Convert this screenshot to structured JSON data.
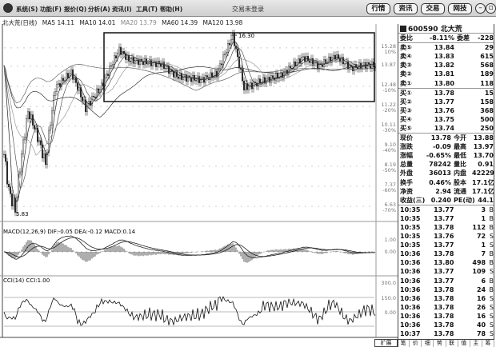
{
  "menu": {
    "items": [
      "系统(S)",
      "功能(F)",
      "报价(Q)",
      "分析(A)",
      "资讯(I)",
      "工具(T)",
      "帮助(H)"
    ],
    "title": "交易未登录",
    "buttons": [
      "行情",
      "资讯",
      "交易",
      "网技"
    ],
    "min": "–",
    "restore": "▫"
  },
  "info": {
    "name": "北大荒(日线)",
    "ma5": "MA5 14.11",
    "ma10": "MA10 14.01",
    "ma20": "MA20 13.79",
    "ma60": "MA60 14.39",
    "ma120": "MA120 13.98"
  },
  "chart_data": [
    {
      "type": "candlestick-line",
      "title": "北大荒(日线)",
      "scale": "log",
      "high_label": "16.30",
      "low_label": "5.83",
      "x": [
        0,
        3,
        7,
        15,
        18,
        26,
        32,
        42,
        51,
        61,
        72,
        78,
        98,
        108,
        123,
        133,
        143,
        146,
        150,
        163,
        173,
        187,
        197,
        207,
        217,
        227,
        232
      ],
      "close": [
        8.72,
        7.2,
        6.52,
        10.9,
        10.3,
        8.29,
        12.37,
        13.45,
        11.13,
        12.48,
        15.14,
        14.33,
        14.03,
        13.17,
        12.9,
        13.34,
        16.28,
        14.5,
        12.37,
        12.9,
        13.2,
        14.52,
        13.9,
        14.64,
        13.75,
        14.0,
        13.9
      ],
      "y_ticks": [
        {
          "price": "15.28",
          "pct": "10%"
        },
        {
          "price": "13.87",
          "pct": ""
        },
        {
          "price": "12.48",
          "pct": "-10%"
        },
        {
          "price": "11.22",
          "pct": "-20%"
        },
        {
          "price": "10.11",
          "pct": "-30%"
        },
        {
          "price": "9.10",
          "pct": "-40%"
        },
        {
          "price": "8.19",
          "pct": "-50%"
        },
        {
          "price": "7.37",
          "pct": "-60%"
        },
        {
          "price": "6.63",
          "pct": "-70%"
        }
      ],
      "moving_averages": [
        "MA5",
        "MA10",
        "MA20",
        "MA60",
        "MA120"
      ]
    },
    {
      "type": "macd",
      "label": "MACD(12,26,9) DIF:-0.05 DEA:-0.12 MACD:0.14",
      "y_ticks": [
        "1.00",
        "0.00"
      ]
    },
    {
      "type": "cci",
      "label": "CCI(14) CCI:1.00",
      "y_ticks": [
        "300.0",
        "150.0",
        "0.00"
      ]
    }
  ],
  "panel": {
    "code": "600590 北大荒",
    "weibi": {
      "l1": "委比",
      "v1": "-8.11%",
      "l2": "委差",
      "v2": "-228"
    },
    "sells": [
      {
        "l": "卖⑤",
        "p": "13.84",
        "v": "29"
      },
      {
        "l": "卖④",
        "p": "13.83",
        "v": "615"
      },
      {
        "l": "卖③",
        "p": "13.82",
        "v": "568"
      },
      {
        "l": "卖②",
        "p": "13.81",
        "v": "189"
      },
      {
        "l": "卖①",
        "p": "13.80",
        "v": "118"
      }
    ],
    "buys": [
      {
        "l": "买①",
        "p": "13.78",
        "v": "15"
      },
      {
        "l": "买②",
        "p": "13.77",
        "v": "158"
      },
      {
        "l": "买③",
        "p": "13.76",
        "v": "368"
      },
      {
        "l": "买④",
        "p": "13.75",
        "v": "500"
      },
      {
        "l": "买⑤",
        "p": "13.74",
        "v": "250"
      }
    ],
    "stats": [
      [
        "现价",
        "13.78",
        "今开",
        "13.88"
      ],
      [
        "涨跌",
        "-0.09",
        "最高",
        "13.97"
      ],
      [
        "涨幅",
        "-0.65%",
        "最低",
        "13.70"
      ],
      [
        "总量",
        "78242",
        "量比",
        "0.91"
      ],
      [
        "外盘",
        "36013",
        "内盘",
        "42229"
      ],
      [
        "换手",
        "0.46%",
        "股本",
        "17.1亿"
      ],
      [
        "净资",
        "2.94",
        "流通",
        "17.1亿"
      ],
      [
        "收益(三)",
        "0.240",
        "PE(动)",
        "44.1"
      ]
    ],
    "ticks": [
      [
        "10:35",
        "13.77",
        "3",
        "B"
      ],
      [
        "10:35",
        "13.77",
        "1",
        "B"
      ],
      [
        "10:35",
        "13.78",
        "112",
        "B"
      ],
      [
        "10:35",
        "13.76",
        "72",
        "S"
      ],
      [
        "10:35",
        "13.77",
        "1",
        "S"
      ],
      [
        "10:36",
        "13.78",
        "7",
        "B"
      ],
      [
        "10:36",
        "13.80",
        "498",
        "B"
      ],
      [
        "10:36",
        "13.77",
        "109",
        "S"
      ],
      [
        "10:36",
        "13.77",
        "6",
        "B"
      ],
      [
        "10:36",
        "13.78",
        "24",
        "B"
      ],
      [
        "10:36",
        "13.78",
        "16",
        "S"
      ],
      [
        "10:36",
        "13.78",
        "26",
        "S"
      ],
      [
        "10:36",
        "13.78",
        "16",
        "S"
      ],
      [
        "10:36",
        "13.78",
        "40",
        "S"
      ],
      [
        "10:37",
        "13.78",
        "78",
        "S"
      ]
    ],
    "tabs": [
      "笔",
      "价",
      "细",
      "势",
      "联",
      "值",
      "主",
      "筹"
    ],
    "left_tab": "扩展"
  }
}
